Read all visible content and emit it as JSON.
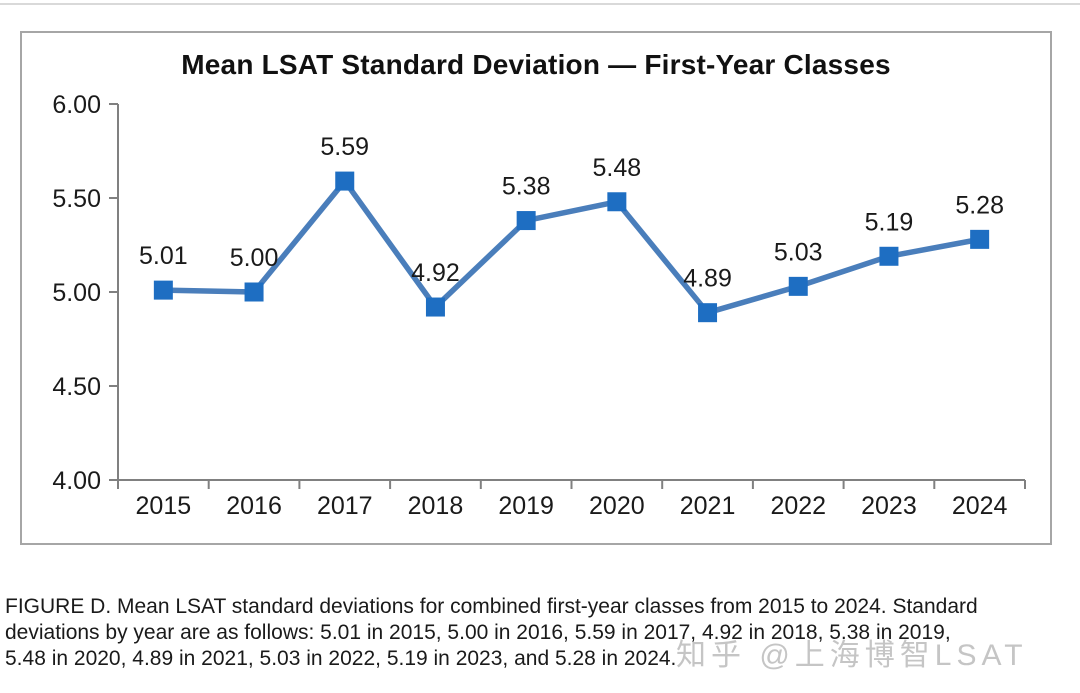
{
  "page": {
    "background": "#ffffff",
    "top_divider_color": "#d9d9d9"
  },
  "chart_data": {
    "type": "line",
    "title": "Mean LSAT Standard Deviation — First-Year Classes",
    "categories": [
      "2015",
      "2016",
      "2017",
      "2018",
      "2019",
      "2020",
      "2021",
      "2022",
      "2023",
      "2024"
    ],
    "series": [
      {
        "name": "Mean LSAT standard deviation",
        "values": [
          5.01,
          5.0,
          5.59,
          4.92,
          5.38,
          5.48,
          4.89,
          5.03,
          5.19,
          5.28
        ]
      }
    ],
    "data_labels": [
      "5.01",
      "5.00",
      "5.59",
      "4.92",
      "5.38",
      "5.48",
      "4.89",
      "5.03",
      "5.19",
      "5.28"
    ],
    "xlabel": "",
    "ylabel": "",
    "ylim": [
      4.0,
      6.0
    ],
    "ytick_labels": [
      "4.00",
      "4.50",
      "5.00",
      "5.50",
      "6.00"
    ],
    "grid": false,
    "legend_position": "none",
    "marker": "square",
    "line_color": "#4a7ebb",
    "marker_color": "#1e6ec2",
    "axis_color": "#808080",
    "text_color": "#1a1a1a"
  },
  "caption": {
    "lines": [
      "FIGURE D. Mean LSAT standard deviations for combined first-year classes from 2015 to 2024. Standard",
      "deviations by year are as follows: 5.01 in 2015, 5.00 in 2016, 5.59 in 2017, 4.92 in 2018, 5.38 in 2019,",
      "5.48 in 2020, 4.89 in 2021, 5.03 in 2022, 5.19 in 2023, and 5.28 in 2024."
    ]
  },
  "watermark": {
    "text": "知乎 @上海博智LSAT",
    "color": "#969696"
  }
}
